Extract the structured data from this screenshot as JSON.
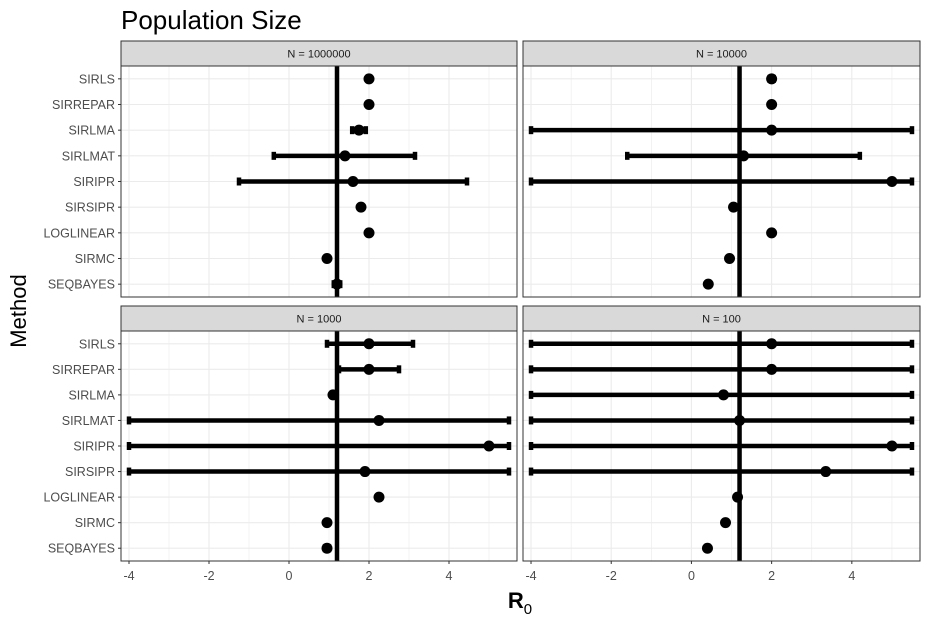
{
  "chart_data": {
    "type": "scatter",
    "title": "Population Size",
    "xlabel": "R",
    "xlabel_subscript": "0",
    "ylabel": "Method",
    "xlim": [
      -4.2,
      5.7
    ],
    "x_ticks": [
      -4,
      -2,
      0,
      2,
      4
    ],
    "grid": true,
    "legend": "none",
    "colors": {
      "mark": "#000000",
      "strip_fill": "#d9d9d9",
      "grid": "#ebebeb",
      "panel_border": "#333333",
      "tick_text": "#4d4d4d"
    },
    "methods": [
      "SIRLS",
      "SIRREPAR",
      "SIRLMA",
      "SIRLMAT",
      "SIRIPR",
      "SIRSIPR",
      "LOGLINEAR",
      "SIRMC",
      "SEQBAYES"
    ],
    "panels": [
      {
        "strip": "N = 1000000",
        "ref_x": 1.2,
        "points": [
          {
            "method": "SIRLS",
            "x": 2.0,
            "lo": 2.0,
            "hi": 2.0
          },
          {
            "method": "SIRREPAR",
            "x": 2.0,
            "lo": 2.0,
            "hi": 2.0
          },
          {
            "method": "SIRLMA",
            "x": 1.75,
            "lo": 1.58,
            "hi": 1.92
          },
          {
            "method": "SIRLMAT",
            "x": 1.4,
            "lo": -0.38,
            "hi": 3.15
          },
          {
            "method": "SIRIPR",
            "x": 1.6,
            "lo": -1.25,
            "hi": 4.45
          },
          {
            "method": "SIRSIPR",
            "x": 1.8,
            "lo": 1.8,
            "hi": 1.8
          },
          {
            "method": "LOGLINEAR",
            "x": 2.0,
            "lo": 2.0,
            "hi": 2.0
          },
          {
            "method": "SIRMC",
            "x": 0.95,
            "lo": 0.95,
            "hi": 0.95
          },
          {
            "method": "SEQBAYES",
            "x": 1.2,
            "lo": 1.12,
            "hi": 1.28
          }
        ]
      },
      {
        "strip": "N = 10000",
        "ref_x": 1.2,
        "points": [
          {
            "method": "SIRLS",
            "x": 2.0,
            "lo": 1.95,
            "hi": 2.05
          },
          {
            "method": "SIRREPAR",
            "x": 2.0,
            "lo": 1.97,
            "hi": 2.03
          },
          {
            "method": "SIRLMA",
            "x": 2.0,
            "lo": -4.0,
            "hi": 5.5
          },
          {
            "method": "SIRLMAT",
            "x": 1.3,
            "lo": -1.6,
            "hi": 4.2
          },
          {
            "method": "SIRIPR",
            "x": 5.0,
            "lo": -4.0,
            "hi": 5.5
          },
          {
            "method": "SIRSIPR",
            "x": 1.05,
            "lo": 1.05,
            "hi": 1.05
          },
          {
            "method": "LOGLINEAR",
            "x": 2.0,
            "lo": 2.0,
            "hi": 2.0
          },
          {
            "method": "SIRMC",
            "x": 0.95,
            "lo": 0.95,
            "hi": 0.95
          },
          {
            "method": "SEQBAYES",
            "x": 0.42,
            "lo": 0.42,
            "hi": 0.42
          }
        ]
      },
      {
        "strip": "N = 1000",
        "ref_x": 1.2,
        "points": [
          {
            "method": "SIRLS",
            "x": 2.0,
            "lo": 0.95,
            "hi": 3.1
          },
          {
            "method": "SIRREPAR",
            "x": 2.0,
            "lo": 1.25,
            "hi": 2.75
          },
          {
            "method": "SIRLMA",
            "x": 1.1,
            "lo": 1.1,
            "hi": 1.1
          },
          {
            "method": "SIRLMAT",
            "x": 2.25,
            "lo": -4.0,
            "hi": 5.5
          },
          {
            "method": "SIRIPR",
            "x": 5.0,
            "lo": -4.0,
            "hi": 5.5
          },
          {
            "method": "SIRSIPR",
            "x": 1.9,
            "lo": -4.0,
            "hi": 5.5
          },
          {
            "method": "LOGLINEAR",
            "x": 2.25,
            "lo": 2.25,
            "hi": 2.25
          },
          {
            "method": "SIRMC",
            "x": 0.95,
            "lo": 0.95,
            "hi": 0.95
          },
          {
            "method": "SEQBAYES",
            "x": 0.95,
            "lo": 0.9,
            "hi": 1.0
          }
        ]
      },
      {
        "strip": "N = 100",
        "ref_x": 1.2,
        "points": [
          {
            "method": "SIRLS",
            "x": 2.0,
            "lo": -4.0,
            "hi": 5.5
          },
          {
            "method": "SIRREPAR",
            "x": 2.0,
            "lo": -4.0,
            "hi": 5.5
          },
          {
            "method": "SIRLMA",
            "x": 0.8,
            "lo": -4.0,
            "hi": 5.5
          },
          {
            "method": "SIRLMAT",
            "x": 1.2,
            "lo": -4.0,
            "hi": 5.5
          },
          {
            "method": "SIRIPR",
            "x": 5.0,
            "lo": -4.0,
            "hi": 5.5
          },
          {
            "method": "SIRSIPR",
            "x": 3.35,
            "lo": -4.0,
            "hi": 5.5
          },
          {
            "method": "LOGLINEAR",
            "x": 1.15,
            "lo": 1.15,
            "hi": 1.15
          },
          {
            "method": "SIRMC",
            "x": 0.85,
            "lo": 0.85,
            "hi": 0.85
          },
          {
            "method": "SEQBAYES",
            "x": 0.4,
            "lo": 0.4,
            "hi": 0.4
          }
        ]
      }
    ]
  }
}
